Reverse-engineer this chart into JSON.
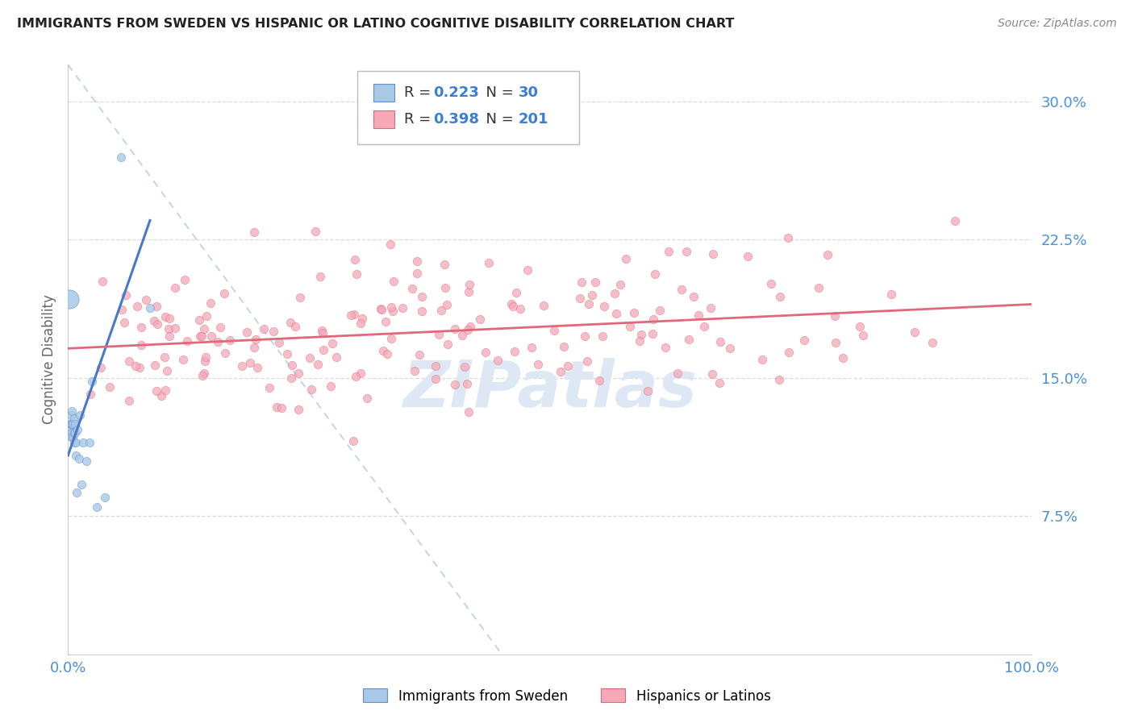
{
  "title": "IMMIGRANTS FROM SWEDEN VS HISPANIC OR LATINO COGNITIVE DISABILITY CORRELATION CHART",
  "source": "Source: ZipAtlas.com",
  "ylabel": "Cognitive Disability",
  "xlim": [
    0.0,
    1.0
  ],
  "ylim": [
    0.0,
    0.32
  ],
  "yticks": [
    0.075,
    0.15,
    0.225,
    0.3
  ],
  "ytick_labels": [
    "7.5%",
    "15.0%",
    "22.5%",
    "30.0%"
  ],
  "blue_R": 0.223,
  "blue_N": 30,
  "pink_R": 0.398,
  "pink_N": 201,
  "blue_color": "#a8c8e8",
  "pink_color": "#f4a8b8",
  "blue_edge_color": "#6090c8",
  "pink_edge_color": "#e06878",
  "blue_line_color": "#4878c8",
  "pink_line_color": "#e06878",
  "ref_line_color": "#b0c8e0",
  "watermark_text": "ZIPatlas",
  "watermark_color": "#dde8f4",
  "background_color": "#ffffff",
  "grid_color": "#d8d8d8",
  "legend_label_blue": "Immigrants from Sweden",
  "legend_label_pink": "Hispanics or Latinos",
  "title_color": "#222222",
  "source_color": "#888888",
  "ylabel_color": "#666666",
  "tick_color": "#4a90d9",
  "blue_x": [
    0.002,
    0.002,
    0.003,
    0.003,
    0.003,
    0.004,
    0.004,
    0.004,
    0.005,
    0.005,
    0.006,
    0.006,
    0.006,
    0.007,
    0.007,
    0.008,
    0.008,
    0.009,
    0.01,
    0.011,
    0.012,
    0.014,
    0.016,
    0.019,
    0.022,
    0.025,
    0.03,
    0.038,
    0.055,
    0.085
  ],
  "blue_y": [
    0.12,
    0.125,
    0.118,
    0.125,
    0.13,
    0.12,
    0.125,
    0.132,
    0.118,
    0.125,
    0.115,
    0.12,
    0.128,
    0.12,
    0.125,
    0.108,
    0.115,
    0.088,
    0.122,
    0.106,
    0.13,
    0.092,
    0.115,
    0.105,
    0.115,
    0.148,
    0.08,
    0.085,
    0.27,
    0.188
  ],
  "pink_intercept": 0.166,
  "pink_slope": 0.024,
  "blue_intercept": 0.108,
  "blue_slope_vis": 1.5,
  "ref_line_x0": 0.0,
  "ref_line_y0": 0.32,
  "ref_line_x1": 0.45,
  "ref_line_y1": 0.0
}
